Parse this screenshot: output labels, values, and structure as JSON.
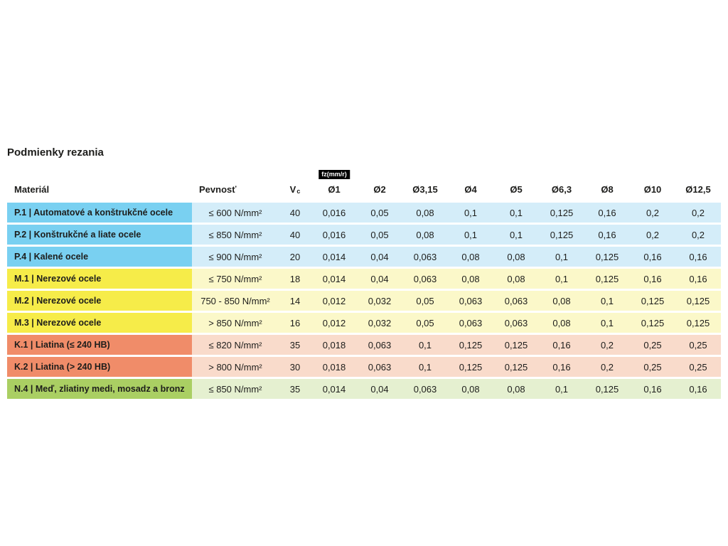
{
  "title": "Podmienky rezania",
  "table": {
    "fz_badge": "fz(mm/r)",
    "headers": {
      "material": "Materiál",
      "strength": "Pevnosť",
      "vc": "V",
      "vc_sub": "c",
      "diameters": [
        "Ø1",
        "Ø2",
        "Ø3,15",
        "Ø4",
        "Ø5",
        "Ø6,3",
        "Ø8",
        "Ø10",
        "Ø12,5"
      ]
    },
    "group_colors": {
      "p": {
        "header": "#79d0f1",
        "body": "#d4edf9"
      },
      "m": {
        "header": "#f6ec49",
        "body": "#fbf8c9"
      },
      "k": {
        "header": "#f08c69",
        "body": "#f9dbcb"
      },
      "n": {
        "header": "#aacf63",
        "body": "#e5f0d0"
      },
      "badge_bg": "#000000",
      "badge_text": "#ffffff",
      "text": "#1d1d1b"
    },
    "rows": [
      {
        "group": "p",
        "material": "P.1 | Automatové a konštrukčné ocele",
        "strength": "≤ 600 N/mm²",
        "vc": "40",
        "values": [
          "0,016",
          "0,05",
          "0,08",
          "0,1",
          "0,1",
          "0,125",
          "0,16",
          "0,2",
          "0,2"
        ]
      },
      {
        "group": "p",
        "material": "P.2 | Konštrukčné a liate ocele",
        "strength": "≤ 850 N/mm²",
        "vc": "40",
        "values": [
          "0,016",
          "0,05",
          "0,08",
          "0,1",
          "0,1",
          "0,125",
          "0,16",
          "0,2",
          "0,2"
        ]
      },
      {
        "group": "p",
        "material": "P.4 | Kalené ocele",
        "strength": "≤ 900 N/mm²",
        "vc": "20",
        "values": [
          "0,014",
          "0,04",
          "0,063",
          "0,08",
          "0,08",
          "0,1",
          "0,125",
          "0,16",
          "0,16"
        ]
      },
      {
        "group": "m",
        "material": "M.1 | Nerezové ocele",
        "strength": "≤ 750 N/mm²",
        "vc": "18",
        "values": [
          "0,014",
          "0,04",
          "0,063",
          "0,08",
          "0,08",
          "0,1",
          "0,125",
          "0,16",
          "0,16"
        ]
      },
      {
        "group": "m",
        "material": "M.2 | Nerezové ocele",
        "strength": "750 - 850 N/mm²",
        "vc": "14",
        "values": [
          "0,012",
          "0,032",
          "0,05",
          "0,063",
          "0,063",
          "0,08",
          "0,1",
          "0,125",
          "0,125"
        ]
      },
      {
        "group": "m",
        "material": "M.3 | Nerezové ocele",
        "strength": "> 850 N/mm²",
        "vc": "16",
        "values": [
          "0,012",
          "0,032",
          "0,05",
          "0,063",
          "0,063",
          "0,08",
          "0,1",
          "0,125",
          "0,125"
        ]
      },
      {
        "group": "k",
        "material": "K.1 | Liatina (≤ 240 HB)",
        "strength": "≤ 820 N/mm²",
        "vc": "35",
        "values": [
          "0,018",
          "0,063",
          "0,1",
          "0,125",
          "0,125",
          "0,16",
          "0,2",
          "0,25",
          "0,25"
        ]
      },
      {
        "group": "k",
        "material": "K.2 | Liatina (> 240 HB)",
        "strength": "> 800 N/mm²",
        "vc": "30",
        "values": [
          "0,018",
          "0,063",
          "0,1",
          "0,125",
          "0,125",
          "0,16",
          "0,2",
          "0,25",
          "0,25"
        ]
      },
      {
        "group": "n",
        "material": "N.4 | Meď, zliatiny medi, mosadz a bronz",
        "strength": "≤ 850 N/mm²",
        "vc": "35",
        "values": [
          "0,014",
          "0,04",
          "0,063",
          "0,08",
          "0,08",
          "0,1",
          "0,125",
          "0,16",
          "0,16"
        ]
      }
    ]
  }
}
